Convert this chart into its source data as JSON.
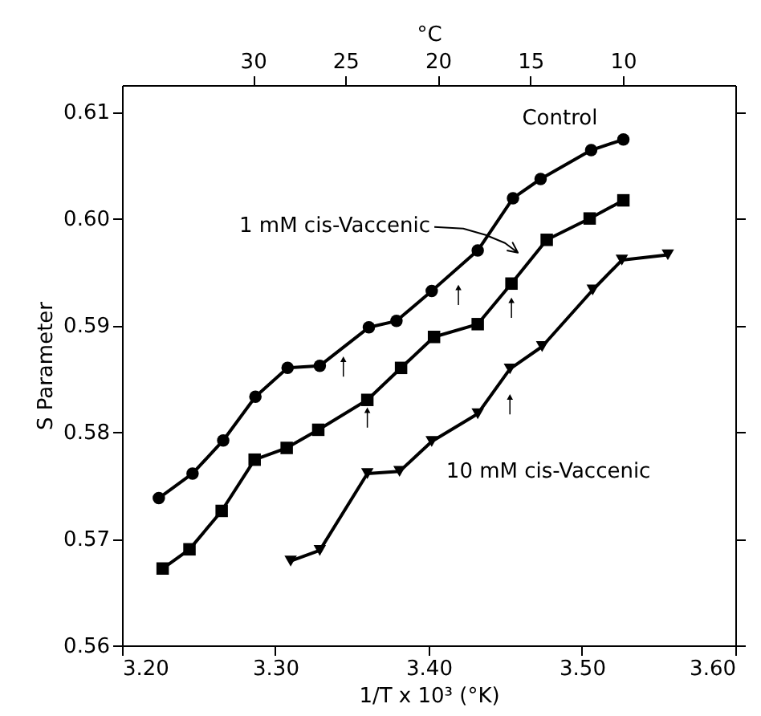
{
  "chart_data": {
    "type": "line",
    "xlabel": "1/T x 10³ (°K)",
    "ylabel": "S Parameter",
    "x2label": "°C",
    "xlim": [
      3.2,
      3.6
    ],
    "xticks": [
      {
        "value": 3.2,
        "label": "3.20"
      },
      {
        "value": 3.3,
        "label": "3.30"
      },
      {
        "value": 3.4,
        "label": "3.40"
      },
      {
        "value": 3.5,
        "label": "3.50"
      },
      {
        "value": 3.6,
        "label": "3.60"
      }
    ],
    "x2lim": [
      37.08,
      3.92
    ],
    "x2ticks": [
      30,
      25,
      20,
      15,
      10
    ],
    "ylim": [
      0.56,
      0.6125
    ],
    "yticks": [
      0.56,
      0.57,
      0.58,
      0.59,
      {
        "value": 0.6,
        "label": "0.60"
      },
      0.61
    ],
    "grid": false,
    "series": [
      {
        "name": "Control",
        "color": "#000000",
        "marker": "circle",
        "x": [
          3.224,
          3.246,
          3.266,
          3.287,
          3.308,
          3.329,
          3.361,
          3.379,
          3.402,
          3.432,
          3.455,
          3.473,
          3.506,
          3.527
        ],
        "values": [
          0.5738,
          0.5761,
          0.5792,
          0.5833,
          0.586,
          0.5862,
          0.5898,
          0.5904,
          0.5932,
          0.597,
          0.6019,
          0.6037,
          0.6064,
          0.6074
        ]
      },
      {
        "name": "1 mM cis-Vaccenic",
        "color": "#000000",
        "marker": "square",
        "x": [
          3.2265,
          3.244,
          3.265,
          3.2865,
          3.3074,
          3.328,
          3.36,
          3.382,
          3.4035,
          3.432,
          3.454,
          3.477,
          3.505,
          3.527
        ],
        "values": [
          0.5672,
          0.569,
          0.5726,
          0.5774,
          0.5785,
          0.5802,
          0.583,
          0.586,
          0.5889,
          0.5901,
          0.5939,
          0.598,
          0.6,
          0.6017
        ]
      },
      {
        "name": "10 mM cis-Vaccenic",
        "color": "#000000",
        "marker": "triangle",
        "x": [
          3.31,
          3.329,
          3.36,
          3.381,
          3.402,
          3.432,
          3.453,
          3.474,
          3.507,
          3.526,
          3.556
        ],
        "values": [
          0.5679,
          0.5689,
          0.5761,
          0.5763,
          0.5791,
          0.5817,
          0.5859,
          0.588,
          0.5933,
          0.5961,
          0.5966
        ]
      }
    ]
  }
}
